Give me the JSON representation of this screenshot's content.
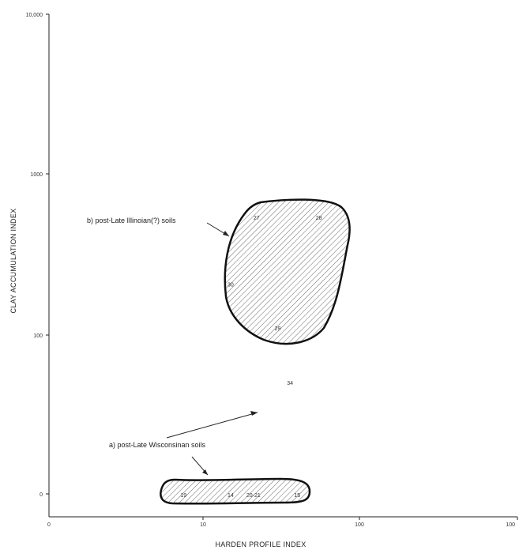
{
  "chart_data": {
    "type": "scatter",
    "xlabel": "HARDEN PROFILE INDEX",
    "ylabel": "CLAY ACCUMULATION INDEX",
    "x_ticks": [
      "0",
      "10",
      "100",
      "100"
    ],
    "y_ticks": [
      "0",
      "100",
      "1000",
      "10,000"
    ],
    "x_scale": "log",
    "y_scale": "log",
    "grid": false,
    "points": [
      {
        "label": "19",
        "x": 7.5,
        "y": 0
      },
      {
        "label": "14",
        "x": 15,
        "y": 0
      },
      {
        "label": "20-21",
        "x": 21,
        "y": 0
      },
      {
        "label": "15",
        "x": 40,
        "y": 0
      },
      {
        "label": "34",
        "x": 36,
        "y": 49
      },
      {
        "label": "27",
        "x": 22,
        "y": 520
      },
      {
        "label": "28",
        "x": 55,
        "y": 520
      },
      {
        "label": "30",
        "x": 15,
        "y": 200
      },
      {
        "label": "29",
        "x": 30,
        "y": 107
      }
    ],
    "regions": [
      {
        "label": "a) post-Late Wisconsinan soils"
      },
      {
        "label": "b) post-Late Illinoian(?) soils"
      }
    ]
  }
}
